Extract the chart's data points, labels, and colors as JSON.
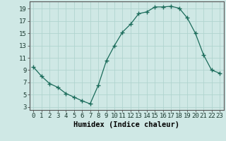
{
  "x": [
    0,
    1,
    2,
    3,
    4,
    5,
    6,
    7,
    8,
    9,
    10,
    11,
    12,
    13,
    14,
    15,
    16,
    17,
    18,
    19,
    20,
    21,
    22,
    23
  ],
  "y": [
    9.5,
    8.0,
    6.8,
    6.2,
    5.2,
    4.6,
    4.0,
    3.5,
    6.5,
    10.5,
    13.0,
    15.2,
    16.5,
    18.2,
    18.5,
    19.3,
    19.3,
    19.4,
    19.1,
    17.5,
    15.0,
    11.5,
    9.0,
    8.5
  ],
  "line_color": "#1a6b5a",
  "marker": "+",
  "marker_size": 4,
  "bg_color": "#cfe8e5",
  "grid_color": "#b0d4cf",
  "xlabel": "Humidex (Indice chaleur)",
  "xlim": [
    -0.5,
    23.5
  ],
  "ylim": [
    2.5,
    20.2
  ],
  "yticks": [
    3,
    5,
    7,
    9,
    11,
    13,
    15,
    17,
    19
  ],
  "xticks": [
    0,
    1,
    2,
    3,
    4,
    5,
    6,
    7,
    8,
    9,
    10,
    11,
    12,
    13,
    14,
    15,
    16,
    17,
    18,
    19,
    20,
    21,
    22,
    23
  ],
  "xlabel_fontsize": 7.5,
  "tick_fontsize": 6.5
}
